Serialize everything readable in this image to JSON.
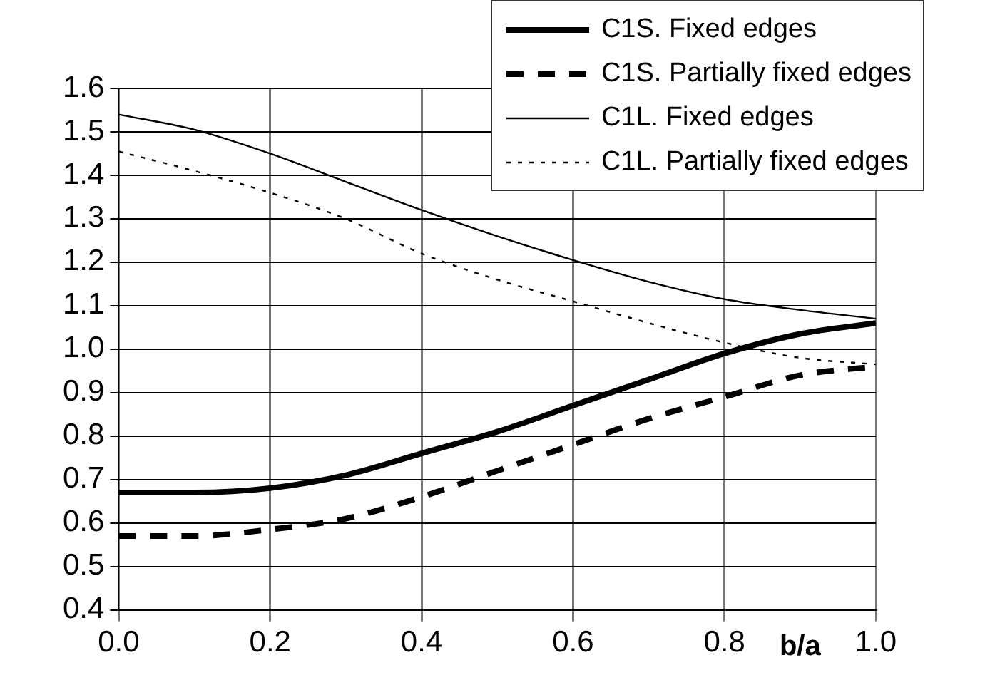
{
  "chart_data": {
    "type": "line",
    "xlabel": "b/a",
    "x": [
      0,
      0.1,
      0.2,
      0.3,
      0.4,
      0.5,
      0.6,
      0.7,
      0.8,
      0.9,
      1.0
    ],
    "series": [
      {
        "name": "C1S. Fixed edges",
        "color": "#000000",
        "line_style": "solid",
        "values": [
          0.67,
          0.67,
          0.68,
          0.71,
          0.76,
          0.81,
          0.87,
          0.93,
          0.99,
          1.035,
          1.06
        ]
      },
      {
        "name": "C1S. Partially fixed edges",
        "color": "#000000",
        "line_style": "dashed",
        "values": [
          0.57,
          0.57,
          0.585,
          0.61,
          0.66,
          0.72,
          0.78,
          0.84,
          0.89,
          0.94,
          0.96
        ]
      },
      {
        "name": "C1L. Fixed edges",
        "color": "#000000",
        "line_style": "solid",
        "values": [
          1.54,
          1.505,
          1.45,
          1.385,
          1.32,
          1.26,
          1.205,
          1.155,
          1.115,
          1.09,
          1.07
        ]
      },
      {
        "name": "C1L. Partially fixed edges",
        "color": "#000000",
        "line_style": "dotted",
        "values": [
          1.455,
          1.41,
          1.36,
          1.3,
          1.22,
          1.16,
          1.11,
          1.06,
          1.015,
          0.98,
          0.965
        ]
      }
    ],
    "xlim": [
      0,
      1
    ],
    "xticks": [
      {
        "value": 0,
        "label": "0.0"
      },
      0.2,
      0.4,
      0.6,
      0.8,
      {
        "value": 1,
        "label": "1.0"
      }
    ],
    "ylim": [
      0.4,
      1.6
    ],
    "yticks": [
      0.4,
      0.5,
      0.6,
      0.7,
      0.8,
      0.9,
      {
        "value": 1,
        "label": "1.0"
      },
      1.1,
      1.2,
      1.3,
      1.4,
      1.5,
      1.6
    ],
    "grid": true,
    "legend": "top right",
    "marker": "none"
  }
}
